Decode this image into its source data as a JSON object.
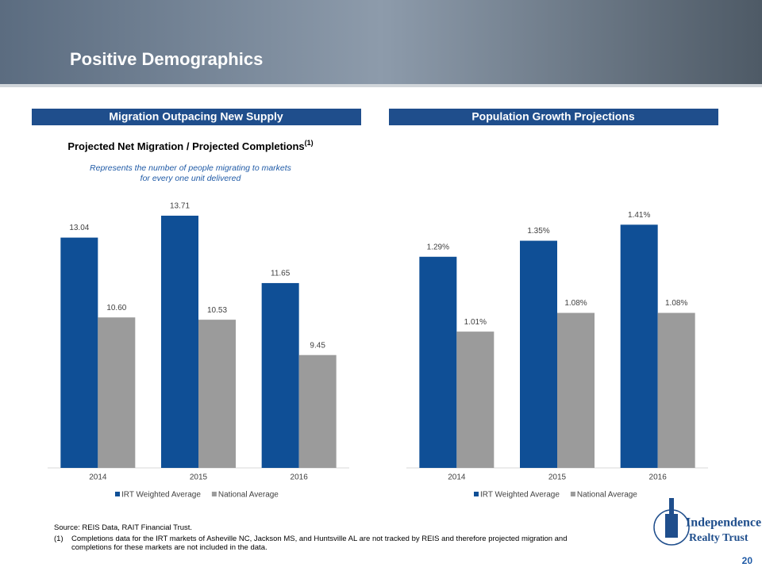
{
  "title": "Positive Demographics",
  "page_number": "20",
  "logo": {
    "line1": "Independence",
    "line2": "Realty Trust"
  },
  "footnotes": {
    "source": "Source: REIS Data, RAIT Financial Trust.",
    "items": [
      {
        "marker": "(1)",
        "text": "Completions data for the IRT markets of Asheville NC, Jackson MS, and Huntsville AL are not tracked by REIS and therefore projected migration and completions for these markets are not included in the data."
      }
    ]
  },
  "chart_data": [
    {
      "type": "bar",
      "section": "Migration Outpacing New Supply",
      "title": "Projected Net Migration / Projected Completions",
      "title_note": "(1)",
      "subtitle": "Represents the number of people migrating to markets for every one unit delivered",
      "categories": [
        "2014",
        "2015",
        "2016"
      ],
      "series": [
        {
          "name": "IRT Weighted Average",
          "color": "#0f4f96",
          "values": [
            13.04,
            13.71,
            11.65
          ]
        },
        {
          "name": "National Average",
          "color": "#9b9b9b",
          "values": [
            10.6,
            10.53,
            9.45
          ],
          "value_labels": [
            "10.60",
            "10.53",
            "9.45"
          ]
        }
      ],
      "ylim": [
        6,
        14
      ]
    },
    {
      "type": "bar",
      "section": "Population Growth Projections",
      "categories": [
        "2014",
        "2015",
        "2016"
      ],
      "series": [
        {
          "name": "IRT Weighted Average",
          "color": "#0f4f96",
          "values": [
            1.29,
            1.35,
            1.41
          ],
          "value_labels": [
            "1.29%",
            "1.35%",
            "1.41%"
          ]
        },
        {
          "name": "National Average",
          "color": "#9b9b9b",
          "values": [
            1.01,
            1.08,
            1.08
          ],
          "value_labels": [
            "1.01%",
            "1.08%",
            "1.08%"
          ]
        }
      ],
      "ylim": [
        0.5,
        1.5
      ]
    }
  ]
}
